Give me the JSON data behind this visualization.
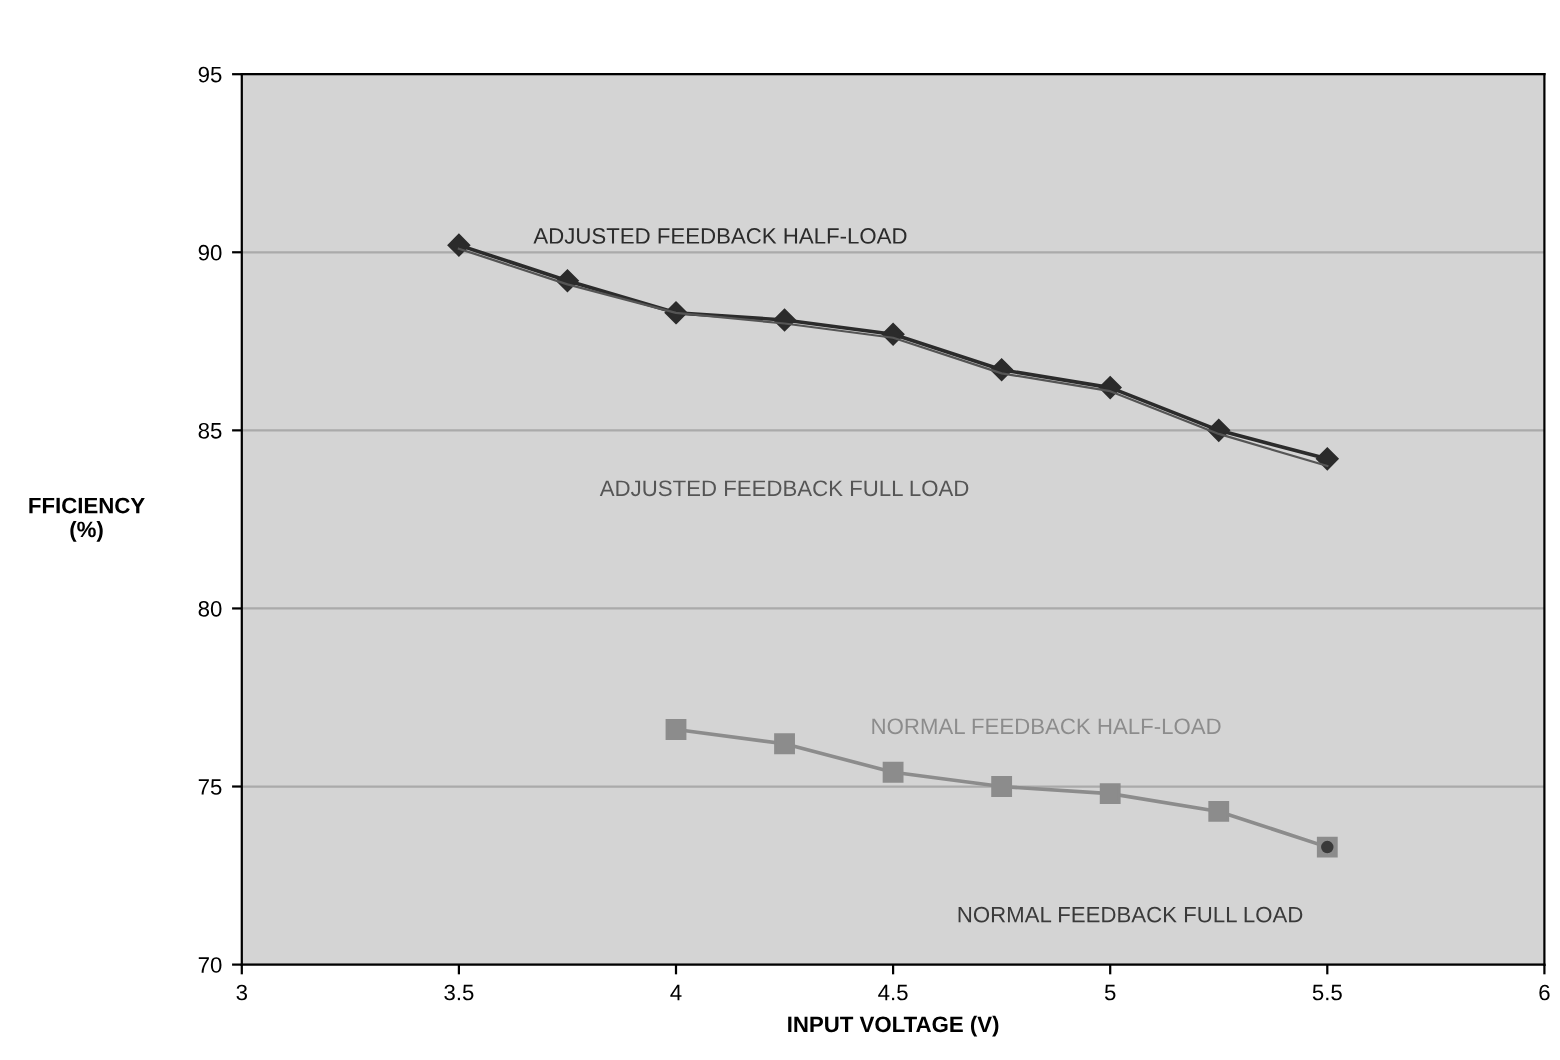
{
  "chart_data": {
    "type": "line",
    "xlabel": "INPUT VOLTAGE (V)",
    "ylabel": "FFICIENCY\n(%)",
    "series": [
      {
        "name": "ADJUSTED FEEDBACK HALF-LOAD",
        "color": "#2b2b2b",
        "marker": "diamond",
        "x": [
          3.5,
          3.75,
          4,
          4.25,
          4.5,
          4.75,
          5,
          5.25,
          5.5
        ],
        "values": [
          90.2,
          89.2,
          88.3,
          88.1,
          87.7,
          86.7,
          86.2,
          85.0,
          84.2
        ]
      },
      {
        "name": "ADJUSTED FEEDBACK FULL LOAD",
        "color": "#555555",
        "marker": "none",
        "x": [
          3.5,
          3.75,
          4,
          4.25,
          4.5,
          4.75,
          5,
          5.25,
          5.5
        ],
        "values": [
          90.1,
          89.1,
          88.3,
          88.0,
          87.6,
          86.6,
          86.1,
          84.9,
          84.0
        ]
      },
      {
        "name": "NORMAL FEEDBACK HALF-LOAD",
        "color": "#8c8c8c",
        "marker": "square",
        "x": [
          4,
          4.25,
          4.5,
          4.75,
          5,
          5.25,
          5.5
        ],
        "values": [
          76.6,
          76.2,
          75.4,
          75.0,
          74.8,
          74.3,
          73.3
        ]
      },
      {
        "name": "NORMAL FEEDBACK FULL LOAD",
        "color": "#3a3a3a",
        "marker": "circle",
        "x": [
          5.5
        ],
        "values": [
          73.3
        ]
      }
    ],
    "xlim": [
      3,
      6
    ],
    "xticks": [
      3,
      3.5,
      4,
      4.5,
      5,
      5.5,
      6
    ],
    "ylim": [
      70,
      95
    ],
    "yticks": [
      70,
      75,
      80,
      85,
      90,
      95
    ],
    "grid": "y",
    "legend": false
  }
}
